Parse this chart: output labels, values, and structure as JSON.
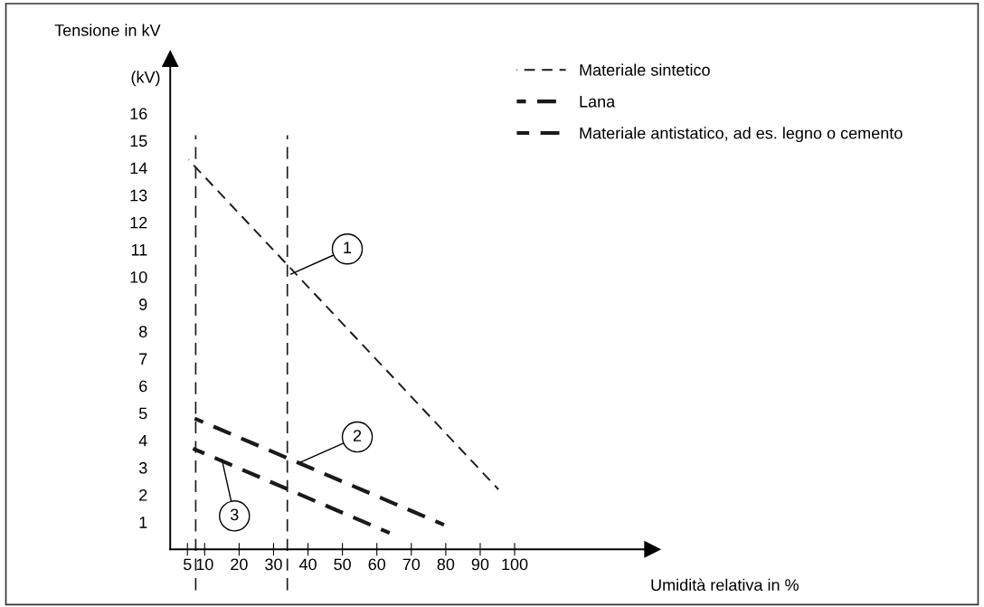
{
  "chart_data": {
    "type": "line",
    "ylabel": "Tensione in kV",
    "xlabel": "Umidità relativa in %",
    "xlim": [
      0,
      140
    ],
    "ylim": [
      0,
      18
    ],
    "xticks": [
      5,
      10,
      20,
      30,
      40,
      50,
      60,
      70,
      80,
      90,
      100
    ],
    "yticks": [
      1,
      2,
      3,
      4,
      5,
      6,
      7,
      8,
      9,
      10,
      11,
      12,
      13,
      14,
      15,
      16
    ],
    "series": [
      {
        "name": "Materiale sintetico",
        "color": "#1a1a1a",
        "x": [
          5.3,
          95.3
        ],
        "values": [
          14.3,
          2.2
        ]
      },
      {
        "name": "Lana",
        "color": "#1a1a1a",
        "x": [
          7.1,
          79.5
        ],
        "values": [
          4.8,
          0.9
        ]
      },
      {
        "name": "Materiale antistatico, ad es. legno o cemento",
        "color": "#1a1a1a",
        "x": [
          6.6,
          63.7
        ],
        "values": [
          3.7,
          0.6
        ]
      }
    ],
    "line_style": "dashed",
    "ref_lines": [
      {
        "axis": "x",
        "value": 7.4,
        "color": "#1a1a1a",
        "line_style": "dashed"
      },
      {
        "axis": "x",
        "value": 34,
        "color": "#1a1a1a",
        "line_style": "dashed"
      }
    ],
    "annotations": [
      "(kV)",
      {
        "text": "1",
        "x": 35,
        "y": 10.1
      },
      {
        "text": "2",
        "x": 37.9,
        "y": 3.2
      },
      {
        "text": "3",
        "x": 15,
        "y": 3.3
      }
    ],
    "legend": "top right",
    "grid": false
  }
}
